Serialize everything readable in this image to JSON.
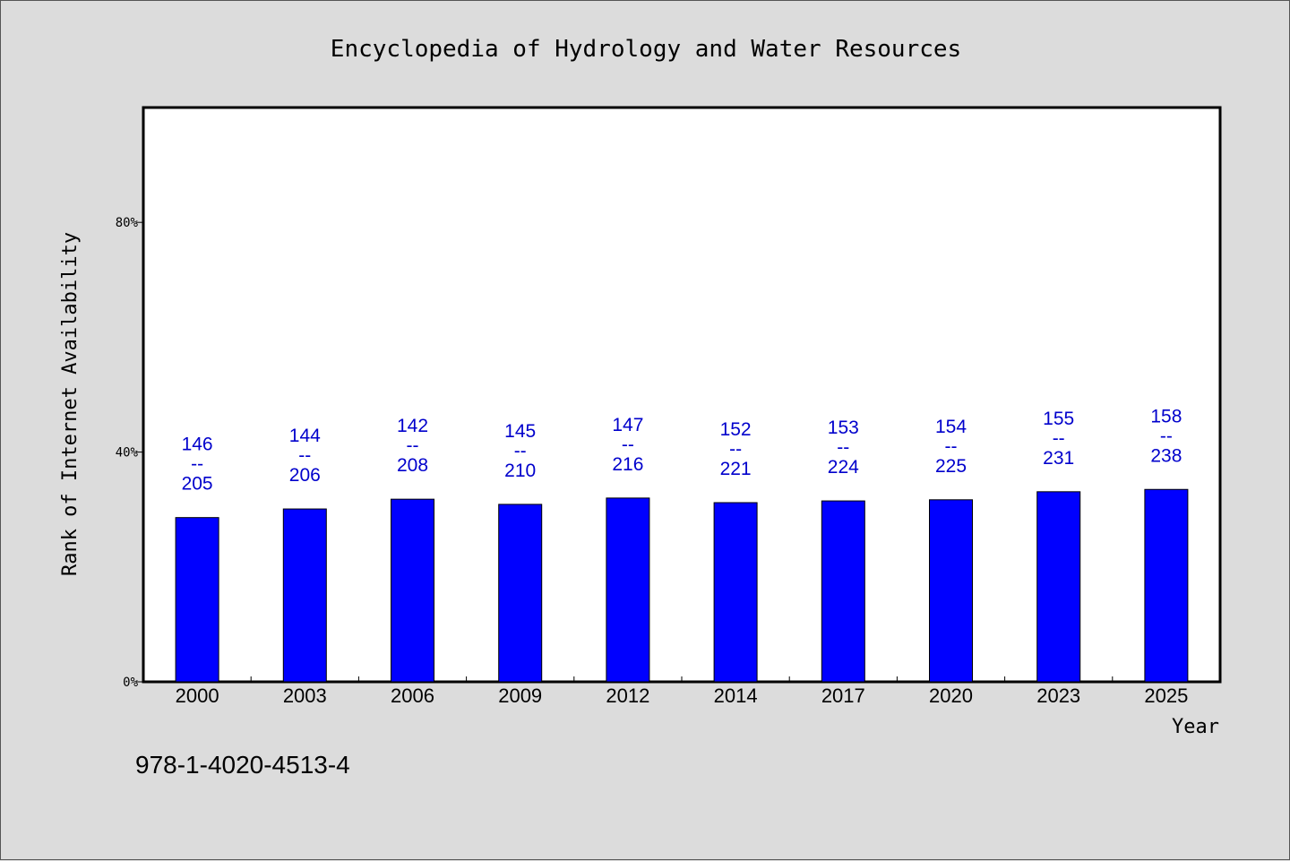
{
  "chart_data": {
    "type": "bar",
    "title": "Encyclopedia of Hydrology and Water Resources",
    "xlabel": "Year",
    "ylabel": "Rank of Internet Availability",
    "ylim": [
      0,
      100
    ],
    "yticks": [
      {
        "value": 0,
        "label": "0%"
      },
      {
        "value": 40,
        "label": "40%"
      },
      {
        "value": 80,
        "label": "80%"
      }
    ],
    "categories": [
      "2000",
      "2003",
      "2006",
      "2009",
      "2012",
      "2014",
      "2017",
      "2020",
      "2023",
      "2025"
    ],
    "values": [
      28.6,
      30.1,
      31.8,
      30.9,
      32.0,
      31.2,
      31.5,
      31.7,
      33.1,
      33.5
    ],
    "data_labels": [
      {
        "top": "146",
        "sep": "--",
        "bottom": "205"
      },
      {
        "top": "144",
        "sep": "--",
        "bottom": "206"
      },
      {
        "top": "142",
        "sep": "--",
        "bottom": "208"
      },
      {
        "top": "145",
        "sep": "--",
        "bottom": "210"
      },
      {
        "top": "147",
        "sep": "--",
        "bottom": "216"
      },
      {
        "top": "152",
        "sep": "--",
        "bottom": "221"
      },
      {
        "top": "153",
        "sep": "--",
        "bottom": "224"
      },
      {
        "top": "154",
        "sep": "--",
        "bottom": "225"
      },
      {
        "top": "155",
        "sep": "--",
        "bottom": "231"
      },
      {
        "top": "158",
        "sep": "--",
        "bottom": "238"
      }
    ],
    "bar_color": "#0000ff",
    "label_color": "#0000cc",
    "grid": false,
    "footer": "978-1-4020-4513-4"
  }
}
